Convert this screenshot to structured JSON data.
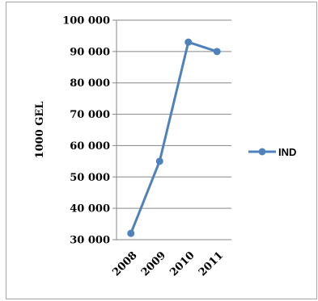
{
  "chart_data": {
    "type": "line",
    "ylabel": "1000 GEL",
    "xlabel": "",
    "title": "",
    "categories": [
      "2008",
      "2009",
      "2010",
      "2011"
    ],
    "ylim": [
      30000,
      100000
    ],
    "yticks": [
      30000,
      40000,
      50000,
      60000,
      70000,
      80000,
      90000,
      100000
    ],
    "ytick_labels": [
      "30 000",
      "40 000",
      "50 000",
      "60 000",
      "70 000",
      "80 000",
      "90 000",
      "100 000"
    ],
    "grid": true,
    "legend": "right",
    "series": [
      {
        "name": "IND",
        "color": "#4f81bd",
        "values": [
          32000,
          55000,
          93000,
          90000
        ]
      }
    ]
  }
}
